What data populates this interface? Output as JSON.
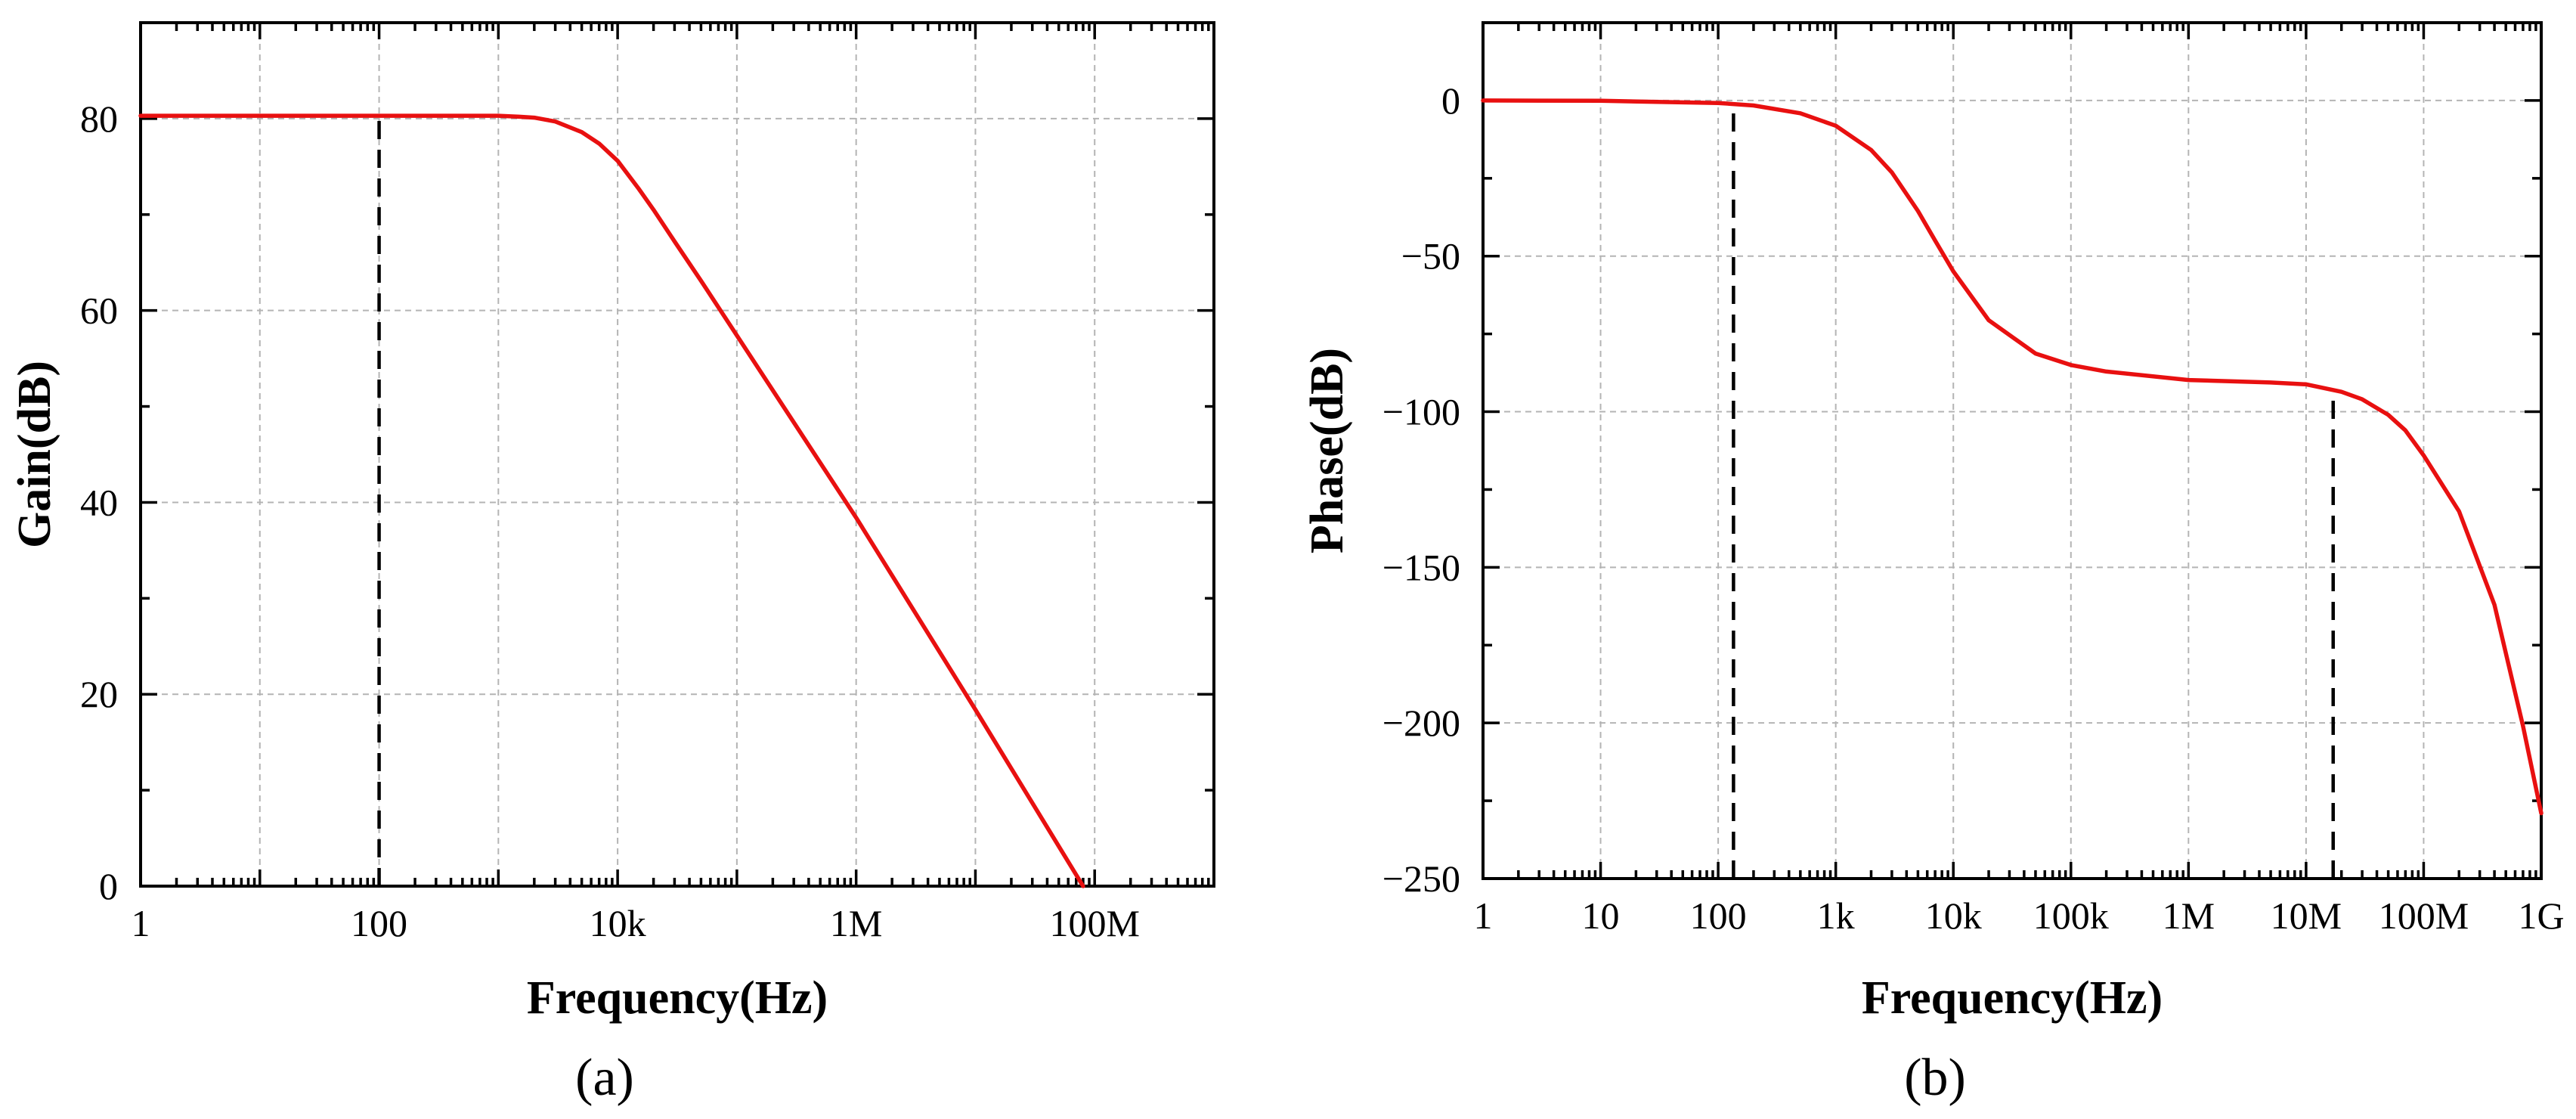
{
  "colors": {
    "curve": "#e81010",
    "grid": "#b4b4b4"
  },
  "chart_data": [
    {
      "panel_label": "(a)",
      "type": "line",
      "xscale": "log",
      "xlabel": "Frequency(Hz)",
      "ylabel": "Gain(dB)",
      "xlim": [
        1,
        1000000000
      ],
      "ylim": [
        0,
        90
      ],
      "grid": true,
      "x_ticks": [
        {
          "value": 1,
          "label": "1"
        },
        {
          "value": 100,
          "label": "100"
        },
        {
          "value": 10000,
          "label": "10k"
        },
        {
          "value": 1000000,
          "label": "1M"
        },
        {
          "value": 100000000,
          "label": "100M"
        }
      ],
      "x_grid": [
        1,
        10,
        100,
        1000,
        10000,
        100000,
        1000000,
        10000000,
        100000000
      ],
      "y_ticks": [
        {
          "value": 0,
          "label": "0"
        },
        {
          "value": 20,
          "label": "20"
        },
        {
          "value": 40,
          "label": "40"
        },
        {
          "value": 60,
          "label": "60"
        },
        {
          "value": 80,
          "label": "80"
        }
      ],
      "markers": [
        100
      ],
      "series": [
        {
          "name": "Gain",
          "x": [
            1,
            10,
            100,
            1000,
            1500,
            2000,
            3000,
            5000,
            7000,
            10000,
            15000,
            20000,
            30000,
            50000,
            100000,
            1000000,
            10000000,
            80000000
          ],
          "y": [
            80.3,
            80.3,
            80.3,
            80.3,
            80.2,
            80.1,
            79.7,
            78.6,
            77.4,
            75.6,
            72.7,
            70.5,
            67.2,
            63.1,
            57.4,
            38.4,
            18.4,
            0
          ]
        }
      ]
    },
    {
      "panel_label": "(b)",
      "type": "line",
      "xscale": "log",
      "xlabel": "Frequency(Hz)",
      "ylabel": "Phase(dB)",
      "xlim": [
        1,
        1000000000
      ],
      "ylim": [
        -250,
        25
      ],
      "grid": true,
      "x_ticks": [
        {
          "value": 1,
          "label": "1"
        },
        {
          "value": 10,
          "label": "10"
        },
        {
          "value": 100,
          "label": "100"
        },
        {
          "value": 1000,
          "label": "1k"
        },
        {
          "value": 10000,
          "label": "10k"
        },
        {
          "value": 100000,
          "label": "100k"
        },
        {
          "value": 1000000,
          "label": "1M"
        },
        {
          "value": 10000000,
          "label": "10M"
        },
        {
          "value": 100000000,
          "label": "100M"
        },
        {
          "value": 1000000000,
          "label": "1G"
        }
      ],
      "x_grid": [
        1,
        10,
        100,
        1000,
        10000,
        100000,
        1000000,
        10000000,
        100000000,
        1000000000
      ],
      "y_ticks": [
        {
          "value": 0,
          "label": "0"
        },
        {
          "value": -50,
          "label": "−50"
        },
        {
          "value": -100,
          "label": "−100"
        },
        {
          "value": -150,
          "label": "−150"
        },
        {
          "value": -200,
          "label": "−200"
        },
        {
          "value": -250,
          "label": "−250"
        }
      ],
      "markers": [
        135,
        17000000
      ],
      "series": [
        {
          "name": "Phase",
          "x": [
            1,
            10,
            100,
            200,
            500,
            1000,
            2000,
            3000,
            5000,
            7000,
            10000,
            20000,
            50000,
            100000,
            200000,
            1000000,
            5000000,
            10000000,
            20000000,
            30000000,
            50000000,
            70000000,
            100000000,
            200000000,
            400000000,
            700000000,
            1000000000
          ],
          "y": [
            0,
            -0.1,
            -0.8,
            -1.6,
            -4.1,
            -8.1,
            -15.9,
            -23.1,
            -35.5,
            -45.0,
            -54.9,
            -70.6,
            -81.3,
            -85.0,
            -87.1,
            -89.8,
            -90.6,
            -91.2,
            -93.6,
            -96.0,
            -101.0,
            -106.0,
            -114.0,
            -132.0,
            -162.0,
            -201.0,
            -229.0
          ]
        }
      ]
    }
  ]
}
